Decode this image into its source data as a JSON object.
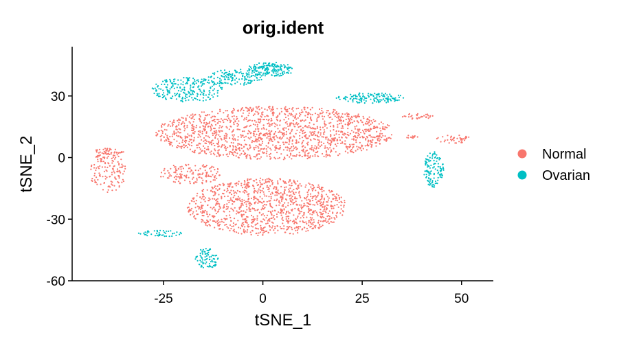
{
  "chart_data": {
    "type": "scatter",
    "title": "orig.ident",
    "xlabel": "tSNE_1",
    "ylabel": "tSNE_2",
    "xlim": [
      -48,
      58
    ],
    "ylim": [
      -60,
      54
    ],
    "xticks": [
      -25,
      0,
      25,
      50
    ],
    "xtick_labels": [
      "-25",
      "0",
      "25",
      "50"
    ],
    "yticks": [
      30,
      0,
      -30,
      -60
    ],
    "ytick_labels": [
      "30",
      "0",
      "-30",
      "-60"
    ],
    "grid": false,
    "legend_position": "right",
    "series": [
      {
        "name": "Normal",
        "color": "#F8766D",
        "clusters": [
          {
            "cx": 3,
            "cy": 12,
            "rx": 30,
            "ry": 13,
            "n": 1500
          },
          {
            "cx": 1,
            "cy": -24,
            "rx": 20,
            "ry": 14,
            "n": 1100
          },
          {
            "cx": -18,
            "cy": -8,
            "rx": 8,
            "ry": 5,
            "n": 140
          },
          {
            "cx": -39,
            "cy": -7,
            "rx": 4.5,
            "ry": 10,
            "n": 140
          },
          {
            "cx": -39,
            "cy": 3,
            "rx": 4,
            "ry": 1.5,
            "n": 45
          },
          {
            "cx": 39,
            "cy": 20,
            "rx": 4,
            "ry": 1.5,
            "n": 30
          },
          {
            "cx": 48,
            "cy": 9,
            "rx": 4.5,
            "ry": 2,
            "n": 40
          },
          {
            "cx": 37,
            "cy": 10,
            "rx": 2,
            "ry": 0.8,
            "n": 12
          }
        ]
      },
      {
        "name": "Ovarian",
        "color": "#00BFC4",
        "clusters": [
          {
            "cx": -19,
            "cy": 33,
            "rx": 9,
            "ry": 6,
            "n": 230
          },
          {
            "cx": -7,
            "cy": 39,
            "rx": 7,
            "ry": 4,
            "n": 130
          },
          {
            "cx": 2,
            "cy": 43,
            "rx": 6,
            "ry": 3.5,
            "n": 160
          },
          {
            "cx": 27,
            "cy": 29,
            "rx": 9,
            "ry": 2.5,
            "n": 130
          },
          {
            "cx": 43,
            "cy": -6,
            "rx": 2.5,
            "ry": 9,
            "n": 120
          },
          {
            "cx": -26,
            "cy": -37,
            "rx": 6,
            "ry": 1.5,
            "n": 45
          },
          {
            "cx": -14,
            "cy": -49,
            "rx": 3,
            "ry": 5,
            "n": 80
          }
        ]
      }
    ]
  }
}
